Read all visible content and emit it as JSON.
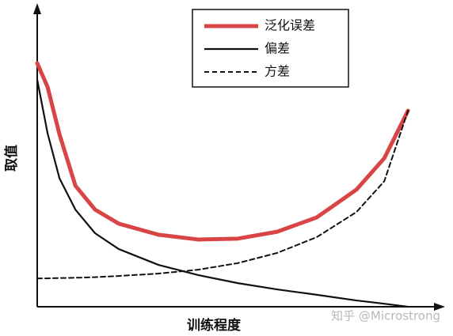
{
  "chart_data": {
    "type": "line",
    "x_label": "训练程度",
    "y_label": "取值",
    "watermark": "知乎 @Microstrong",
    "x": [
      0,
      0.28,
      0.6,
      1.03,
      1.56,
      2.2,
      3.27,
      4.34,
      5.41,
      6.47,
      7.54,
      8.61,
      9.36,
      10
    ],
    "xlim": [
      0,
      10.85
    ],
    "ylim": [
      0,
      10
    ],
    "series": [
      {
        "name": "泛化误差",
        "color": "#d94545",
        "linestyle": "solid",
        "linewidth": 5,
        "values": [
          8.15,
          7.35,
          5.77,
          4.05,
          3.25,
          2.78,
          2.41,
          2.25,
          2.28,
          2.51,
          2.99,
          3.92,
          4.97,
          6.56
        ]
      },
      {
        "name": "偏差",
        "color": "#111111",
        "linestyle": "solid",
        "linewidth": 2.2,
        "values": [
          7.6,
          5.8,
          4.3,
          3.25,
          2.46,
          1.93,
          1.4,
          1.06,
          0.79,
          0.58,
          0.4,
          0.21,
          0.1,
          0
        ]
      },
      {
        "name": "方差",
        "color": "#111111",
        "linestyle": "dashed",
        "linewidth": 2,
        "values": [
          0.95,
          0.95,
          0.96,
          0.97,
          0.99,
          1.03,
          1.11,
          1.24,
          1.46,
          1.8,
          2.33,
          3.17,
          4.2,
          6.56
        ]
      }
    ],
    "legend": "upper center"
  }
}
